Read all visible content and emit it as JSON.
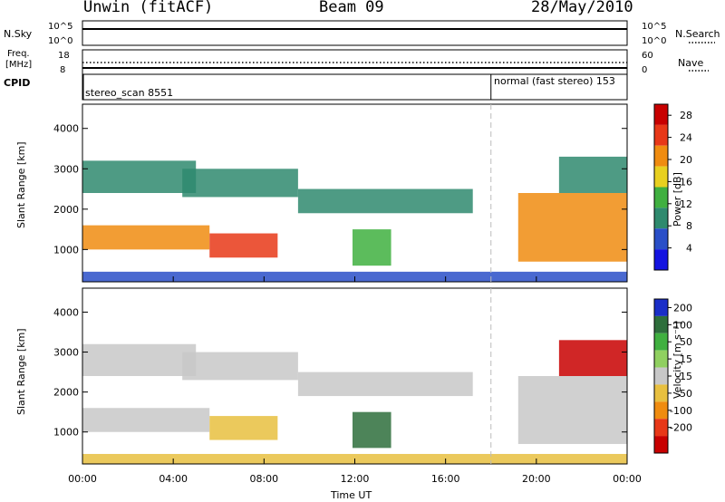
{
  "header": {
    "station": "Unwin (fitACF)",
    "beam": "Beam 09",
    "date": "28/May/2010"
  },
  "strip": {
    "nsky_label": "N.Sky",
    "nsky_ticks": [
      "10^5",
      "10^0"
    ],
    "nsearch_label": "N.Search",
    "nsearch_ticks": [
      "10^5",
      "10^0"
    ],
    "freq_label_line1": "Freq.",
    "freq_label_line2": "[MHz]",
    "freq_ticks": [
      "18",
      "8"
    ],
    "nave_label": "Nave",
    "nave_ticks": [
      "60",
      "0"
    ],
    "cpid_label": "CPID",
    "cpid_modes": [
      {
        "name": "stereo_scan",
        "id": "8551",
        "start_hour": 0
      },
      {
        "name": "normal (fast stereo)",
        "id": "153",
        "start_hour": 18
      }
    ]
  },
  "axes": {
    "ylabel": "Slant Range [km]",
    "yticks": [
      1000,
      2000,
      3000,
      4000
    ],
    "ylim": [
      200,
      4600
    ],
    "xlabel": "Time UT",
    "xticks": [
      "00:00",
      "04:00",
      "08:00",
      "12:00",
      "16:00",
      "20:00",
      "00:00"
    ],
    "xlim_hours": [
      0,
      24
    ]
  },
  "chart_data": [
    {
      "type": "heatmap",
      "name": "power",
      "colorbar_label": "Power [dB]",
      "colorbar_ticks": [
        4,
        8,
        12,
        16,
        20,
        24,
        28
      ],
      "colorbar_range": [
        0,
        30
      ],
      "colors": [
        "#1414e0",
        "#2a4fc8",
        "#2f8a6e",
        "#40b040",
        "#e8d020",
        "#f08c10",
        "#e83818",
        "#c80000"
      ],
      "regions": [
        {
          "t0": 0.0,
          "t1": 5.6,
          "r0": 1000,
          "r1": 1600,
          "level": 22
        },
        {
          "t0": 5.6,
          "t1": 8.6,
          "r0": 800,
          "r1": 1400,
          "level": 24
        },
        {
          "t0": 0.0,
          "t1": 5.0,
          "r0": 2400,
          "r1": 3200,
          "level": 10
        },
        {
          "t0": 4.4,
          "t1": 9.5,
          "r0": 2300,
          "r1": 3000,
          "level": 8
        },
        {
          "t0": 9.5,
          "t1": 17.2,
          "r0": 1900,
          "r1": 2500,
          "level": 10
        },
        {
          "t0": 11.9,
          "t1": 13.6,
          "r0": 600,
          "r1": 1500,
          "level": 12
        },
        {
          "t0": 19.2,
          "t1": 24.0,
          "r0": 700,
          "r1": 2400,
          "level": 20
        },
        {
          "t0": 21.0,
          "t1": 24.0,
          "r0": 2400,
          "r1": 3300,
          "level": 8
        },
        {
          "t0": 0.0,
          "t1": 24.0,
          "r0": 200,
          "r1": 450,
          "level": 4
        }
      ]
    },
    {
      "type": "heatmap",
      "name": "velocity",
      "colorbar_label": "Velocity [m s⁻¹]",
      "colorbar_ticks": [
        200,
        100,
        50,
        15,
        -15,
        -50,
        -100,
        -200
      ],
      "colorbar_range": [
        -250,
        250
      ],
      "colors": [
        "#1a2ec8",
        "#2e6e3c",
        "#40b040",
        "#90d060",
        "#c8c8c8",
        "#e8c040",
        "#f08c10",
        "#e83818",
        "#c80000"
      ],
      "regions": [
        {
          "t0": 0.0,
          "t1": 5.6,
          "r0": 1000,
          "r1": 1600,
          "level": 0
        },
        {
          "t0": 5.6,
          "t1": 8.6,
          "r0": 800,
          "r1": 1400,
          "level": -80
        },
        {
          "t0": 0.0,
          "t1": 5.0,
          "r0": 2400,
          "r1": 3200,
          "level": -20
        },
        {
          "t0": 4.4,
          "t1": 9.5,
          "r0": 2300,
          "r1": 3000,
          "level": 0
        },
        {
          "t0": 9.5,
          "t1": 17.2,
          "r0": 1900,
          "r1": 2500,
          "level": 0
        },
        {
          "t0": 11.9,
          "t1": 13.6,
          "r0": 600,
          "r1": 1500,
          "level": 180
        },
        {
          "t0": 19.2,
          "t1": 24.0,
          "r0": 700,
          "r1": 2400,
          "level": 0
        },
        {
          "t0": 21.0,
          "t1": 24.0,
          "r0": 2400,
          "r1": 3300,
          "level": -200
        },
        {
          "t0": 0.0,
          "t1": 24.0,
          "r0": 200,
          "r1": 450,
          "level": -30
        }
      ]
    }
  ]
}
